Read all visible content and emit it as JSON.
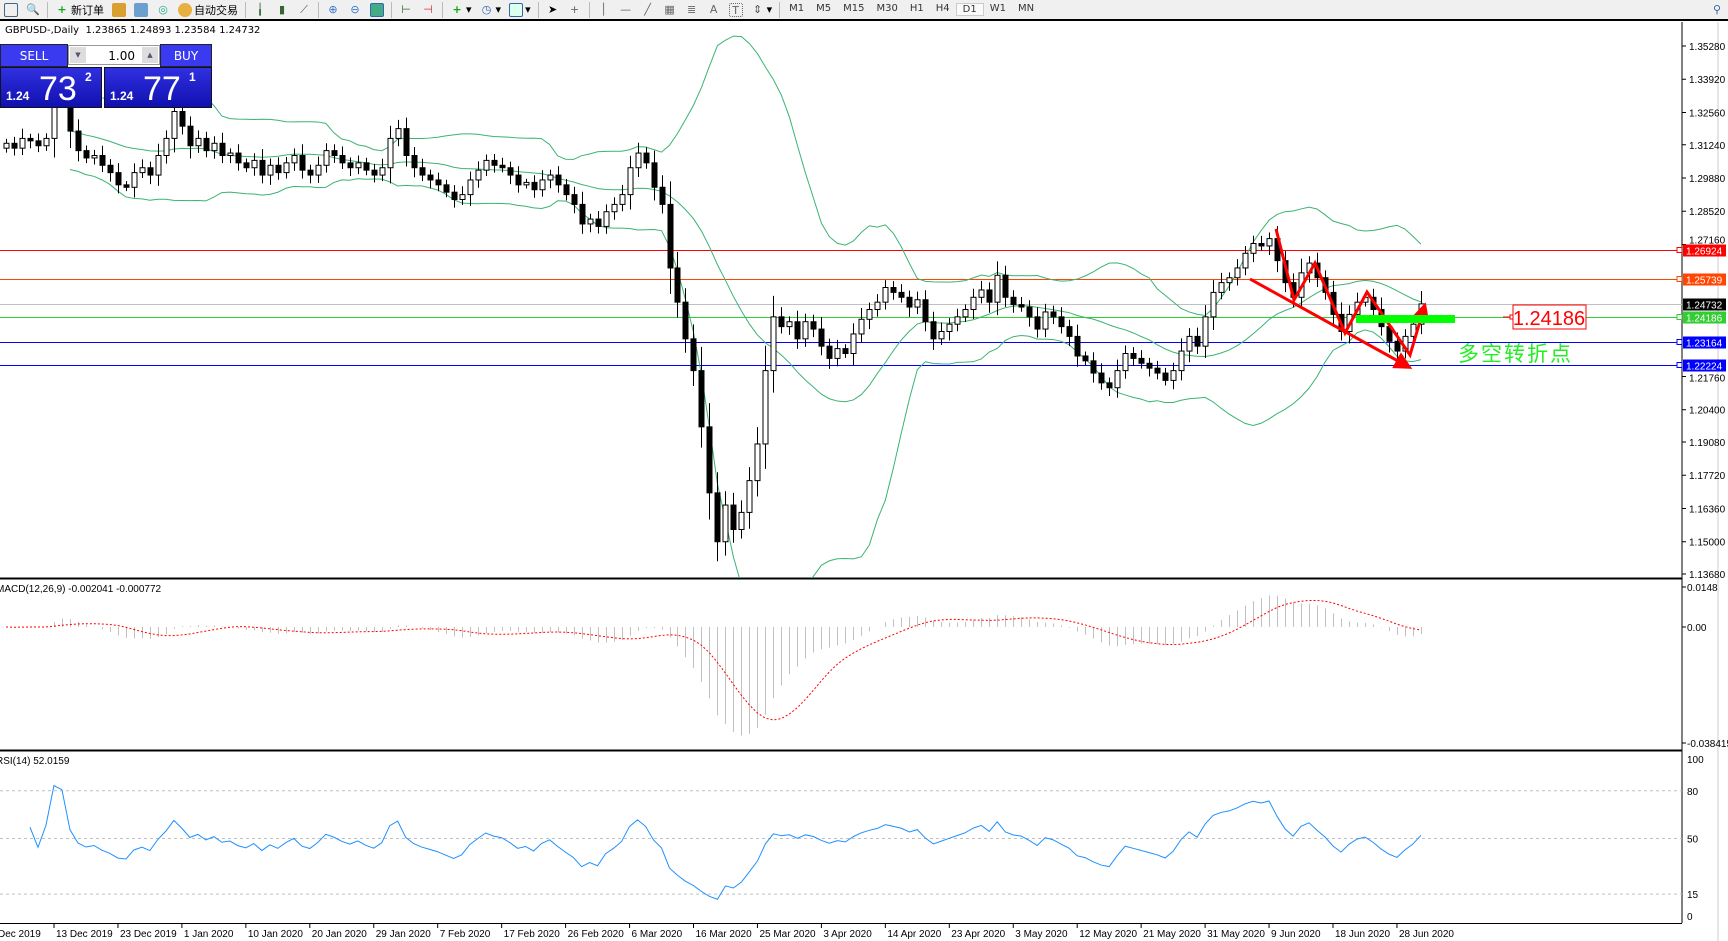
{
  "toolbar": {
    "new_order": "新订单",
    "auto_trading": "自动交易",
    "timeframes": [
      "M1",
      "M5",
      "M15",
      "M30",
      "H1",
      "H4",
      "D1",
      "W1",
      "MN"
    ],
    "active_timeframe": "D1"
  },
  "header": {
    "symbol": "GBPUSD-,Daily",
    "ohlc": "1.23865 1.24893 1.23584 1.24732"
  },
  "trade_panel": {
    "sell_label": "SELL",
    "buy_label": "BUY",
    "lot": "1.00",
    "sell_small": "1.24",
    "sell_big": "73",
    "sell_sup": "2",
    "buy_small": "1.24",
    "buy_big": "77",
    "buy_sup": "1"
  },
  "price_axis": {
    "labels": [
      "1.35280",
      "1.33920",
      "1.32560",
      "1.31240",
      "1.29880",
      "1.28520",
      "1.27160",
      "1.21760",
      "1.20400",
      "1.19080",
      "1.17720",
      "1.16360",
      "1.15000",
      "1.13680"
    ]
  },
  "hlines": [
    {
      "price": "1.26924",
      "color": "#ff0000"
    },
    {
      "price": "1.25739",
      "color": "#ff4500"
    },
    {
      "price": "1.24732",
      "color": "#c0c0c0",
      "tag": "#000000"
    },
    {
      "price": "1.24186",
      "color": "#32cd32"
    },
    {
      "price": "1.23164",
      "color": "#0000ff"
    },
    {
      "price": "1.22224",
      "color": "#0000ff"
    }
  ],
  "annotations": {
    "price_label": "1.24186",
    "turning_point": "多空转折点"
  },
  "macd": {
    "label": "MACD(12,26,9) -0.002041 -0.000772",
    "axis": [
      "0.0148",
      "0.00",
      "-0.038415"
    ]
  },
  "rsi": {
    "label": "RSI(14) 52.0159",
    "axis": [
      "100",
      "80",
      "50",
      "15",
      "0"
    ]
  },
  "time_axis": [
    "Dec 2019",
    "13 Dec 2019",
    "23 Dec 2019",
    "1 Jan 2020",
    "10 Jan 2020",
    "20 Jan 2020",
    "29 Jan 2020",
    "7 Feb 2020",
    "17 Feb 2020",
    "26 Feb 2020",
    "6 Mar 2020",
    "16 Mar 2020",
    "25 Mar 2020",
    "3 Apr 2020",
    "14 Apr 2020",
    "23 Apr 2020",
    "3 May 2020",
    "12 May 2020",
    "21 May 2020",
    "31 May 2020",
    "9 Jun 2020",
    "18 Jun 2020",
    "28 Jun 2020"
  ],
  "colors": {
    "bands": "#3cb371",
    "macd_hist": "#c0c0c0",
    "macd_signal": "#ff0000",
    "rsi": "#1e90ff",
    "drawing": "#ff0000",
    "zone": "#00ff00"
  },
  "chart_data": {
    "type": "candlestick",
    "symbol": "GBPUSD",
    "timeframe": "Daily",
    "closes": [
      1.313,
      1.311,
      1.315,
      1.314,
      1.312,
      1.315,
      1.333,
      1.332,
      1.318,
      1.31,
      1.307,
      1.308,
      1.304,
      1.301,
      1.296,
      1.295,
      1.301,
      1.303,
      1.3,
      1.308,
      1.315,
      1.326,
      1.32,
      1.312,
      1.315,
      1.31,
      1.313,
      1.308,
      1.309,
      1.305,
      1.303,
      1.306,
      1.3,
      1.304,
      1.301,
      1.305,
      1.308,
      1.302,
      1.3,
      1.304,
      1.31,
      1.308,
      1.305,
      1.303,
      1.305,
      1.302,
      1.3,
      1.303,
      1.315,
      1.319,
      1.308,
      1.303,
      1.3,
      1.298,
      1.296,
      1.293,
      1.29,
      1.292,
      1.298,
      1.302,
      1.306,
      1.304,
      1.303,
      1.3,
      1.296,
      1.297,
      1.294,
      1.298,
      1.3,
      1.296,
      1.292,
      1.288,
      1.28,
      1.282,
      1.279,
      1.285,
      1.288,
      1.292,
      1.303,
      1.309,
      1.305,
      1.295,
      1.288,
      1.262,
      1.248,
      1.233,
      1.22,
      1.197,
      1.17,
      1.15,
      1.165,
      1.155,
      1.162,
      1.175,
      1.19,
      1.22,
      1.242,
      1.238,
      1.24,
      1.233,
      1.24,
      1.237,
      1.23,
      1.225,
      1.229,
      1.227,
      1.235,
      1.241,
      1.245,
      1.248,
      1.254,
      1.252,
      1.25,
      1.246,
      1.249,
      1.24,
      1.233,
      1.236,
      1.239,
      1.242,
      1.245,
      1.25,
      1.253,
      1.248,
      1.259,
      1.25,
      1.247,
      1.246,
      1.242,
      1.237,
      1.244,
      1.242,
      1.238,
      1.234,
      1.226,
      1.224,
      1.219,
      1.215,
      1.213,
      1.22,
      1.227,
      1.225,
      1.223,
      1.221,
      1.219,
      1.216,
      1.22,
      1.228,
      1.234,
      1.23,
      1.242,
      1.252,
      1.256,
      1.258,
      1.262,
      1.268,
      1.272,
      1.271,
      1.274,
      1.265,
      1.256,
      1.25,
      1.26,
      1.264,
      1.258,
      1.252,
      1.243,
      1.236,
      1.243,
      1.248,
      1.25,
      1.245,
      1.238,
      1.232,
      1.228,
      1.234,
      1.239,
      1.2473
    ],
    "yrange": [
      1.1368,
      1.3528
    ]
  }
}
